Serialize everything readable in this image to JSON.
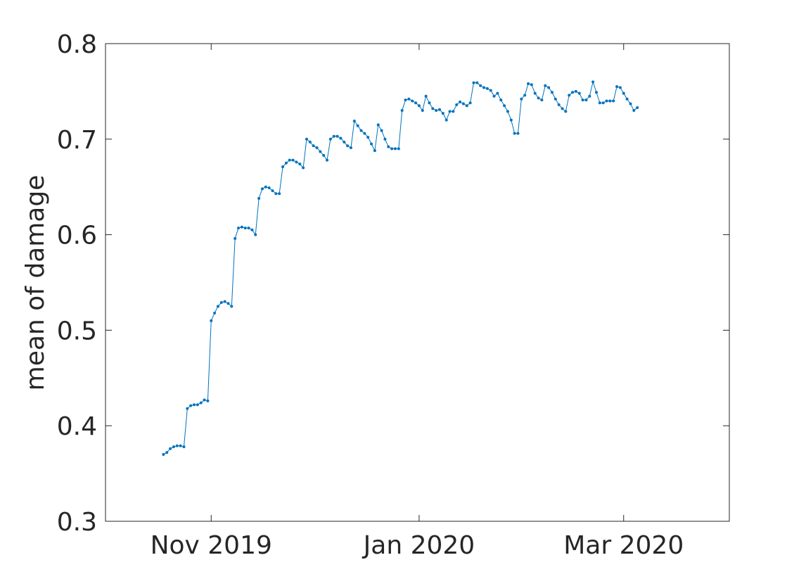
{
  "chart_data": {
    "type": "line",
    "title": "",
    "xlabel": "",
    "ylabel": "mean of damage",
    "x_ticks": [
      "Nov 2019",
      "Jan 2020",
      "Mar 2020"
    ],
    "x_tick_dates": [
      "2019-11-01",
      "2020-01-01",
      "2020-03-01"
    ],
    "xlim": [
      "2019-10-01",
      "2020-04-01"
    ],
    "y_ticks": [
      "0.3",
      "0.4",
      "0.5",
      "0.6",
      "0.7",
      "0.8"
    ],
    "ylim": [
      0.3,
      0.8
    ],
    "grid": false,
    "legend": false,
    "marker": "dot",
    "series": [
      {
        "color": "#0072bd",
        "x_start": "2019-10-18",
        "step": "1 day",
        "values": [
          0.37,
          0.372,
          0.376,
          0.378,
          0.379,
          0.379,
          0.378,
          0.418,
          0.421,
          0.422,
          0.422,
          0.424,
          0.427,
          0.426,
          0.51,
          0.518,
          0.525,
          0.529,
          0.53,
          0.528,
          0.525,
          0.596,
          0.607,
          0.608,
          0.607,
          0.607,
          0.605,
          0.6,
          0.638,
          0.648,
          0.65,
          0.649,
          0.646,
          0.643,
          0.643,
          0.671,
          0.675,
          0.678,
          0.678,
          0.676,
          0.674,
          0.67,
          0.7,
          0.697,
          0.693,
          0.691,
          0.687,
          0.683,
          0.678,
          0.7,
          0.703,
          0.703,
          0.701,
          0.697,
          0.693,
          0.691,
          0.719,
          0.714,
          0.709,
          0.706,
          0.702,
          0.695,
          0.688,
          0.715,
          0.709,
          0.7,
          0.692,
          0.69,
          0.69,
          0.69,
          0.73,
          0.741,
          0.742,
          0.74,
          0.738,
          0.735,
          0.73,
          0.745,
          0.738,
          0.732,
          0.73,
          0.731,
          0.727,
          0.72,
          0.729,
          0.729,
          0.736,
          0.739,
          0.737,
          0.735,
          0.738,
          0.759,
          0.759,
          0.756,
          0.754,
          0.753,
          0.751,
          0.745,
          0.748,
          0.741,
          0.735,
          0.729,
          0.72,
          0.706,
          0.706,
          0.742,
          0.746,
          0.758,
          0.757,
          0.748,
          0.743,
          0.741,
          0.756,
          0.754,
          0.749,
          0.742,
          0.736,
          0.732,
          0.729,
          0.746,
          0.749,
          0.75,
          0.748,
          0.741,
          0.741,
          0.745,
          0.76,
          0.749,
          0.738,
          0.738,
          0.74,
          0.74,
          0.74,
          0.755,
          0.754,
          0.748,
          0.742,
          0.737,
          0.73,
          0.733
        ]
      }
    ]
  }
}
